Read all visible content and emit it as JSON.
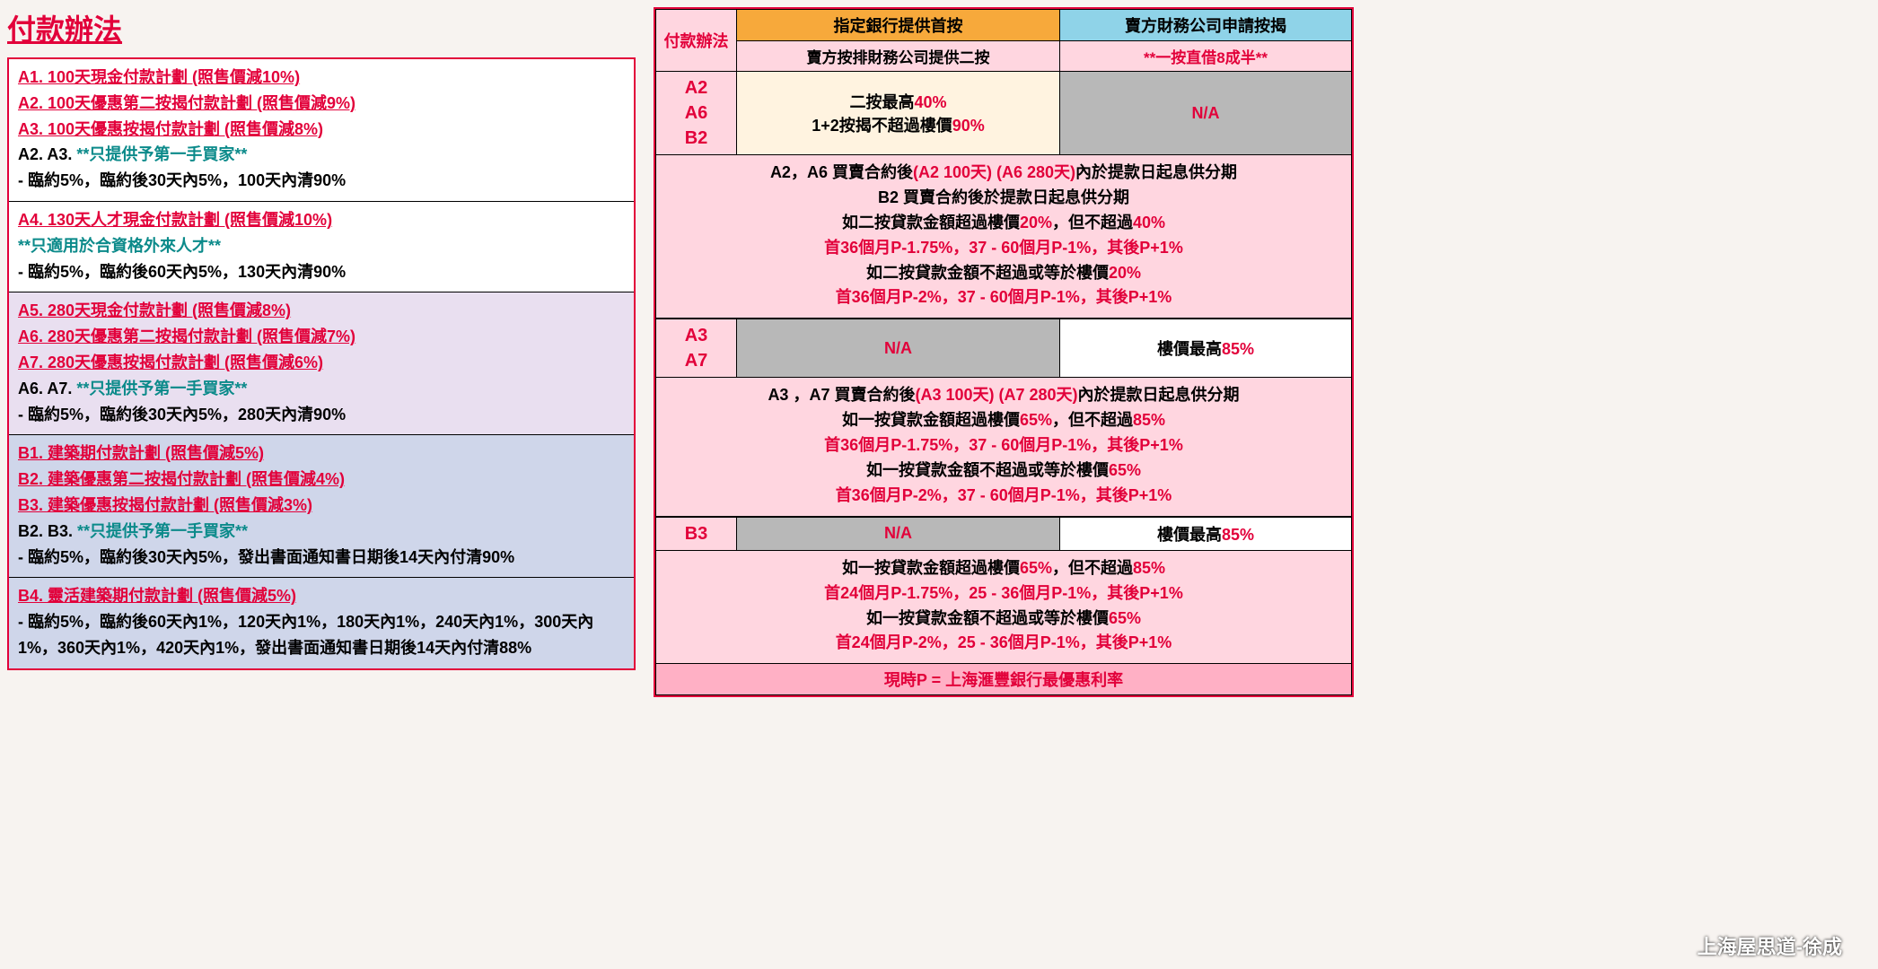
{
  "title": "付款辦法",
  "left": {
    "blocks": [
      {
        "bg": "bg-white",
        "plans": [
          "A1. 100天現金付款計劃 (照售價減10%)",
          "A2. 100天優惠第二按揭付款計劃 (照售價減9%)",
          "A3. 100天優惠按揭付款計劃 (照售價減8%)"
        ],
        "note_prefix": "A2. A3. ",
        "note_hl": "**只提供予第一手買家**",
        "pay": "-   臨約5%，臨約後30天內5%，100天內清90%"
      },
      {
        "bg": "bg-white",
        "plans": [
          "A4. 130天人才現金付款計劃 (照售價減10%)"
        ],
        "note_prefix": "",
        "note_hl": "**只適用於合資格外來人才**",
        "pay": "-   臨約5%，臨約後60天內5%，130天內清90%"
      },
      {
        "bg": "bg-lav",
        "plans": [
          "A5. 280天現金付款計劃 (照售價減8%)",
          "A6. 280天優惠第二按揭付款計劃 (照售價減7%)",
          "A7. 280天優惠按揭付款計劃 (照售價減6%)"
        ],
        "note_prefix": "A6. A7. ",
        "note_hl": "**只提供予第一手買家**",
        "pay": "-   臨約5%，臨約後30天內5%，280天內清90%"
      },
      {
        "bg": "bg-blue",
        "plans": [
          "B1. 建築期付款計劃 (照售價減5%)",
          "B2. 建築優惠第二按揭付款計劃 (照售價減4%)",
          "B3. 建築優惠按揭付款計劃 (照售價減3%)"
        ],
        "note_prefix": "B2. B3. ",
        "note_hl": "**只提供予第一手買家**",
        "pay": "-   臨約5%，臨約後30天內5%，發出書面通知書日期後14天內付清90%"
      },
      {
        "bg": "bg-blue",
        "plans": [
          "B4. 靈活建築期付款計劃 (照售價減5%)"
        ],
        "note_prefix": "",
        "note_hl": "",
        "pay": "-   臨約5%，臨約後60天內1%，120天內1%，180天內1%，240天內1%，300天內1%，360天內1%，420天內1%，發出書面通知書日期後14天內付清88%"
      }
    ]
  },
  "right": {
    "h1": "付款辦法",
    "h2a": "指定銀行提供首按",
    "h2b": "賣方按排財務公司提供二按",
    "h3a": "賣方財務公司申請按揭",
    "h3b": "**一按直借8成半**",
    "row1_plans": "A2\nA6\nB2",
    "row1_mid_a": "二按最高",
    "row1_mid_a_hl": "40%",
    "row1_mid_b": "1+2按揭不超過樓價",
    "row1_mid_b_hl": "90%",
    "row1_right": "N/A",
    "detail1": [
      {
        "pre": "A2，A6 買賣合約後",
        "hl": "(A2 100天) (A6 280天)",
        "post": "內於提款日起息供分期"
      },
      {
        "pre": "B2 買賣合約後於提款日起息供分期",
        "hl": "",
        "post": ""
      },
      {
        "pre": "如二按貸款金額超過樓價",
        "hl": "20%",
        "post": "，但不超過",
        "hl2": "40%"
      },
      {
        "pre": "",
        "hl": "首36個月P-1.75%，37 - 60個月P-1%，其後P+1%",
        "post": ""
      },
      {
        "pre": "如二按貸款金額不超過或等於樓價",
        "hl": "20%",
        "post": ""
      },
      {
        "pre": "",
        "hl": "首36個月P-2%，37 - 60個月P-1%，其後P+1%",
        "post": ""
      }
    ],
    "row2_plans": "A3\nA7",
    "row2_mid": "N/A",
    "row2_right_a": "樓價最高",
    "row2_right_hl": "85%",
    "detail2": [
      {
        "pre": "A3 ，A7 買賣合約後",
        "hl": "(A3 100天) (A7 280天)",
        "post": "內於提款日起息供分期"
      },
      {
        "pre": "如一按貸款金額超過樓價",
        "hl": "65%",
        "post": "，但不超過",
        "hl2": "85%"
      },
      {
        "pre": "",
        "hl": "首36個月P-1.75%，37 - 60個月P-1%，其後P+1%",
        "post": ""
      },
      {
        "pre": "如一按貸款金額不超過或等於樓價",
        "hl": "65%",
        "post": ""
      },
      {
        "pre": "",
        "hl": "首36個月P-2%，37 - 60個月P-1%，其後P+1%",
        "post": ""
      }
    ],
    "row3_plans": "B3",
    "row3_mid": "N/A",
    "row3_right_a": "樓價最高",
    "row3_right_hl": "85%",
    "detail3": [
      {
        "pre": "如一按貸款金額超過樓價",
        "hl": "65%",
        "post": "，但不超過",
        "hl2": "85%"
      },
      {
        "pre": "",
        "hl": "首24個月P-1.75%，25 - 36個月P-1%，其後P+1%",
        "post": ""
      },
      {
        "pre": "如一按貸款金額不超過或等於樓價",
        "hl": "65%",
        "post": ""
      },
      {
        "pre": "",
        "hl": "首24個月P-2%，25 - 36個月P-1%，其後P+1%",
        "post": ""
      }
    ],
    "footer": "現時P = 上海滙豐銀行最優惠利率"
  },
  "watermark": "上海屋思道-徐成"
}
